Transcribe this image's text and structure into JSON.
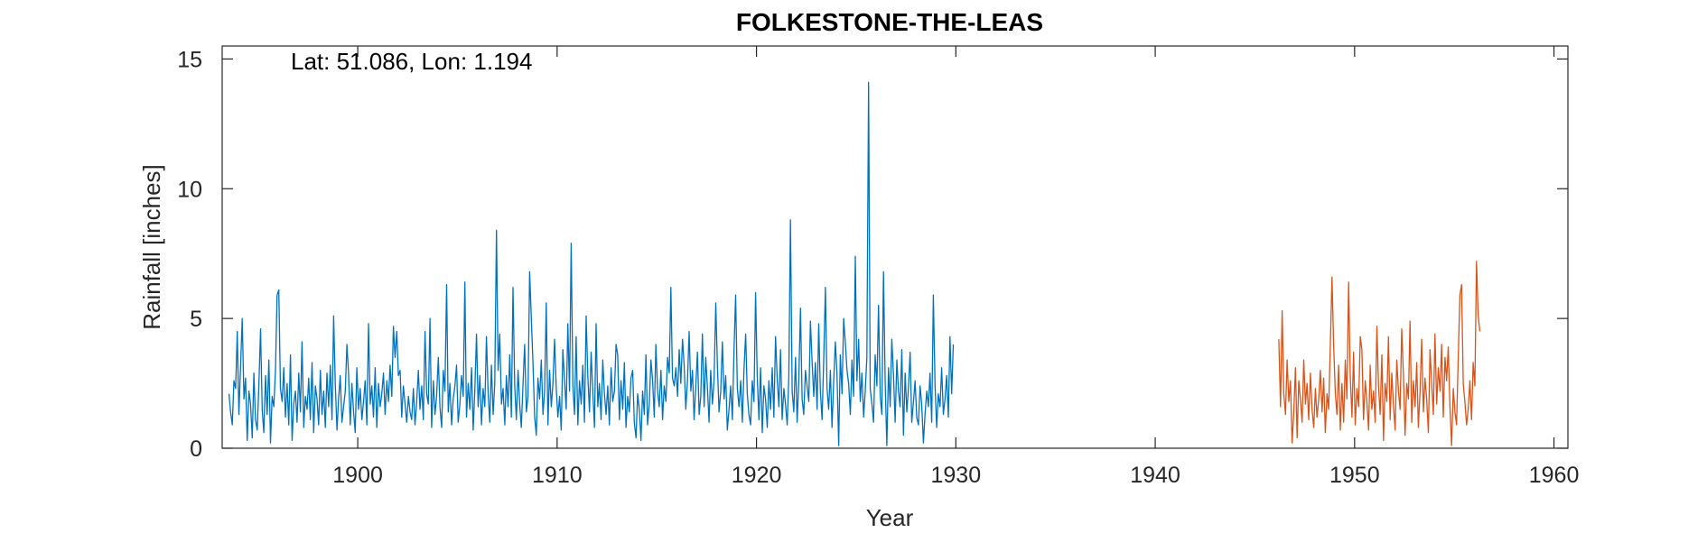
{
  "chart_data": {
    "type": "line",
    "title": "FOLKESTONE-THE-LEAS",
    "annotation": "Lat: 51.086, Lon: 1.194",
    "xlabel": "Year",
    "ylabel": "Rainfall [inches]",
    "xlim": [
      1893.2,
      1960.7
    ],
    "ylim": [
      0,
      15.5
    ],
    "xticks": [
      1900,
      1910,
      1920,
      1930,
      1940,
      1950,
      1960
    ],
    "yticks": [
      0,
      5,
      10,
      15
    ],
    "grid": false,
    "colors": {
      "observed": "#0072BD",
      "recent": "#D95319",
      "axis": "#262626"
    },
    "series": [
      {
        "x_start": 1893.54,
        "step_years": 0.08333,
        "values": [
          2.1,
          1.4,
          0.9,
          2.6,
          2.3,
          4.5,
          1.3,
          3.2,
          5.0,
          1.9,
          2.7,
          0.3,
          2.2,
          1.7,
          0.4,
          2.9,
          1.1,
          0.7,
          2.4,
          4.6,
          1.5,
          0.6,
          2.8,
          1.3,
          3.4,
          0.2,
          2.0,
          1.6,
          3.0,
          5.9,
          6.1,
          2.3,
          1.8,
          3.1,
          1.2,
          2.5,
          0.9,
          3.6,
          0.3,
          1.7,
          2.2,
          1.0,
          2.9,
          1.4,
          4.1,
          0.8,
          2.0,
          1.5,
          2.7,
          1.1,
          3.3,
          0.6,
          2.4,
          1.9,
          0.9,
          3.0,
          1.3,
          2.2,
          0.8,
          2.9,
          1.6,
          3.2,
          1.1,
          5.1,
          2.5,
          0.7,
          1.9,
          2.8,
          1.0,
          1.6,
          2.2,
          4.0,
          2.9,
          0.9,
          2.5,
          1.4,
          0.6,
          3.1,
          1.5,
          2.3,
          1.1,
          1.8,
          2.6,
          0.9,
          4.8,
          1.7,
          2.4,
          1.2,
          3.1,
          0.8,
          2.5,
          1.6,
          2.1,
          2.9,
          1.3,
          2.6,
          1.8,
          3.2,
          2.0,
          4.7,
          3.5,
          4.5,
          2.8,
          3.0,
          1.2,
          2.4,
          1.7,
          1.0,
          2.0,
          1.4,
          1.1,
          2.3,
          0.9,
          1.8,
          3.0,
          1.5,
          2.4,
          1.1,
          4.5,
          2.1,
          1.7,
          5.0,
          0.8,
          2.6,
          1.3,
          2.0,
          3.5,
          1.6,
          0.8,
          3.0,
          2.2,
          6.3,
          1.4,
          2.5,
          0.9,
          1.9,
          2.4,
          3.2,
          1.0,
          1.7,
          2.8,
          2.0,
          6.4,
          1.2,
          2.5,
          1.5,
          3.1,
          0.7,
          2.2,
          4.4,
          1.6,
          2.8,
          0.9,
          2.3,
          1.6,
          4.3,
          2.1,
          1.0,
          3.2,
          1.3,
          2.5,
          8.4,
          3.0,
          4.4,
          1.7,
          2.3,
          0.9,
          2.8,
          1.6,
          3.6,
          1.2,
          6.2,
          2.4,
          1.1,
          3.0,
          1.7,
          0.8,
          2.5,
          4.0,
          1.4,
          2.0,
          6.8,
          5.0,
          3.3,
          1.2,
          0.5,
          2.7,
          1.9,
          3.4,
          1.3,
          2.2,
          5.6,
          0.9,
          3.0,
          1.6,
          2.5,
          4.2,
          2.3,
          1.2,
          2.0,
          0.7,
          3.8,
          2.6,
          1.5,
          4.8,
          2.2,
          7.9,
          2.4,
          1.3,
          4.3,
          0.9,
          2.6,
          1.7,
          3.2,
          1.0,
          5.1,
          2.8,
          1.4,
          3.7,
          2.2,
          0.8,
          4.8,
          1.6,
          2.5,
          1.1,
          3.4,
          2.1,
          1.3,
          2.4,
          0.9,
          3.1,
          1.8,
          2.2,
          4.0,
          3.6,
          1.1,
          2.6,
          1.5,
          3.3,
          0.8,
          2.0,
          1.4,
          2.7,
          3.0,
          1.0,
          0.4,
          2.1,
          1.5,
          0.3,
          2.2,
          1.3,
          3.6,
          0.9,
          1.7,
          3.4,
          2.6,
          1.2,
          4.0,
          2.2,
          1.6,
          3.0,
          1.1,
          2.4,
          1.8,
          3.5,
          2.9,
          6.2,
          2.7,
          2.4,
          3.1,
          2.0,
          3.8,
          2.5,
          4.2,
          3.2,
          1.5,
          2.6,
          4.5,
          2.2,
          3.0,
          1.1,
          2.4,
          3.7,
          1.3,
          2.0,
          4.4,
          1.6,
          3.5,
          2.3,
          1.0,
          3.0,
          1.7,
          2.6,
          5.6,
          3.2,
          1.4,
          2.2,
          4.1,
          1.9,
          2.8,
          0.7,
          1.5,
          2.4,
          1.1,
          3.8,
          5.9,
          2.3,
          1.6,
          2.6,
          1.0,
          3.0,
          4.4,
          2.1,
          1.3,
          0.9,
          2.6,
          1.8,
          6.0,
          2.8,
          1.1,
          3.1,
          0.6,
          2.4,
          1.9,
          0.8,
          2.6,
          1.5,
          3.1,
          1.2,
          4.3,
          2.7,
          1.6,
          3.8,
          1.1,
          2.3,
          1.7,
          0.9,
          2.8,
          8.8,
          2.2,
          1.4,
          3.5,
          1.0,
          2.6,
          5.4,
          1.9,
          1.3,
          3.0,
          2.4,
          1.8,
          4.9,
          3.4,
          2.0,
          3.3,
          1.5,
          4.8,
          2.2,
          1.1,
          3.4,
          6.2,
          2.3,
          1.5,
          3.0,
          0.8,
          2.6,
          4.1,
          2.9,
          0.1,
          3.6,
          2.1,
          5.0,
          4.1,
          3.0,
          2.5,
          1.3,
          3.4,
          2.0,
          7.4,
          2.6,
          4.2,
          1.8,
          2.9,
          1.2,
          2.2,
          3.5,
          14.1,
          2.3,
          1.7,
          1.0,
          3.6,
          2.4,
          5.5,
          2.0,
          1.3,
          6.8,
          2.5,
          0.1,
          3.1,
          1.6,
          4.2,
          2.8,
          1.0,
          3.4,
          2.2,
          1.6,
          3.8,
          0.5,
          2.9,
          1.4,
          2.3,
          3.7,
          1.0,
          1.8,
          2.6,
          1.2,
          0.9,
          2.4,
          1.7,
          0.2,
          1.3,
          2.2,
          1.6,
          2.9,
          1.0,
          5.9,
          2.4,
          0.8,
          2.1,
          1.6,
          3.1,
          1.3,
          1.9,
          2.8,
          1.2,
          4.3,
          2.1,
          4.0
        ]
      },
      {
        "x_start": 1946.2,
        "step_years": 0.08333,
        "values": [
          4.2,
          1.6,
          5.3,
          2.1,
          1.3,
          3.4,
          1.8,
          2.6,
          0.2,
          1.4,
          3.1,
          0.4,
          2.6,
          1.9,
          1.0,
          3.4,
          1.7,
          2.5,
          1.1,
          2.9,
          1.5,
          0.8,
          2.3,
          1.2,
          1.9,
          3.0,
          1.4,
          2.7,
          0.6,
          2.1,
          1.5,
          3.9,
          6.6,
          4.0,
          2.1,
          1.3,
          3.2,
          0.7,
          2.5,
          1.0,
          3.4,
          1.9,
          6.4,
          2.8,
          1.2,
          3.7,
          0.9,
          2.3,
          1.6,
          4.3,
          3.8,
          1.1,
          2.6,
          1.8,
          0.7,
          3.2,
          1.5,
          2.2,
          1.0,
          4.7,
          2.4,
          1.3,
          3.6,
          0.3,
          2.5,
          1.8,
          4.3,
          1.1,
          2.9,
          1.7,
          0.7,
          3.4,
          2.2,
          1.5,
          4.6,
          2.8,
          0.5,
          2.5,
          1.9,
          4.9,
          1.0,
          2.6,
          1.6,
          3.3,
          0.8,
          2.2,
          4.2,
          1.4,
          2.7,
          1.9,
          0.6,
          3.8,
          2.5,
          1.3,
          4.4,
          1.7,
          3.1,
          2.2,
          4.0,
          1.2,
          3.5,
          2.6,
          3.9,
          1.6,
          0.1,
          2.3,
          1.4,
          0.9,
          3.5,
          5.9,
          6.3,
          2.5,
          1.8,
          0.9,
          1.5,
          2.6,
          1.1,
          3.3,
          2.4,
          7.2,
          5.1,
          4.5
        ]
      }
    ]
  }
}
